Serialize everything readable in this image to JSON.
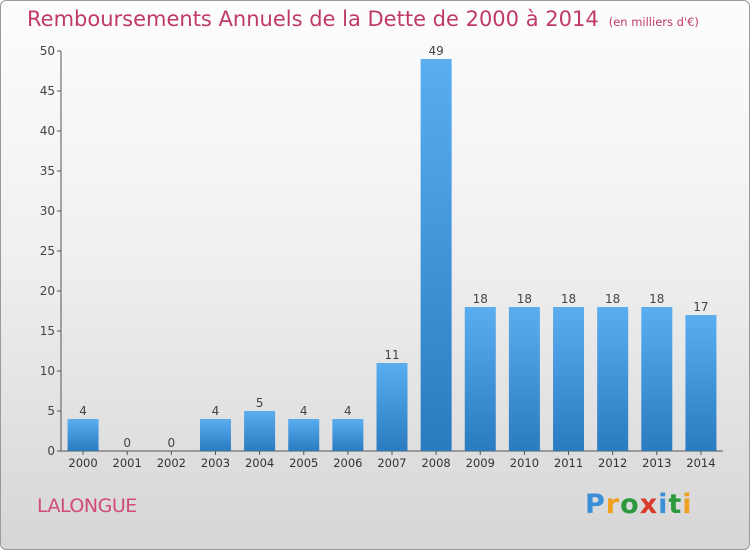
{
  "title": "Remboursements Annuels de la Dette de 2000 à 2014",
  "unit_note": "(en milliers d'€)",
  "place_name": "LALONGUE",
  "logo_text": "Proxiti",
  "colors": {
    "title": "#c0396b",
    "bar_light": "#5aaef0",
    "bar_dark": "#2a7bc0",
    "axis": "#555555"
  },
  "chart_data": {
    "type": "bar",
    "title": "Remboursements Annuels de la Dette de 2000 à 2014",
    "categories": [
      "2000",
      "2001",
      "2002",
      "2003",
      "2004",
      "2005",
      "2006",
      "2007",
      "2008",
      "2009",
      "2010",
      "2011",
      "2012",
      "2013",
      "2014"
    ],
    "values": [
      4,
      0,
      0,
      4,
      5,
      4,
      4,
      11,
      49,
      18,
      18,
      18,
      18,
      18,
      17
    ],
    "ylim": [
      0,
      50
    ],
    "yticks": [
      0,
      5,
      10,
      15,
      20,
      25,
      30,
      35,
      40,
      45,
      50
    ],
    "grid": false,
    "data_labels": true
  }
}
